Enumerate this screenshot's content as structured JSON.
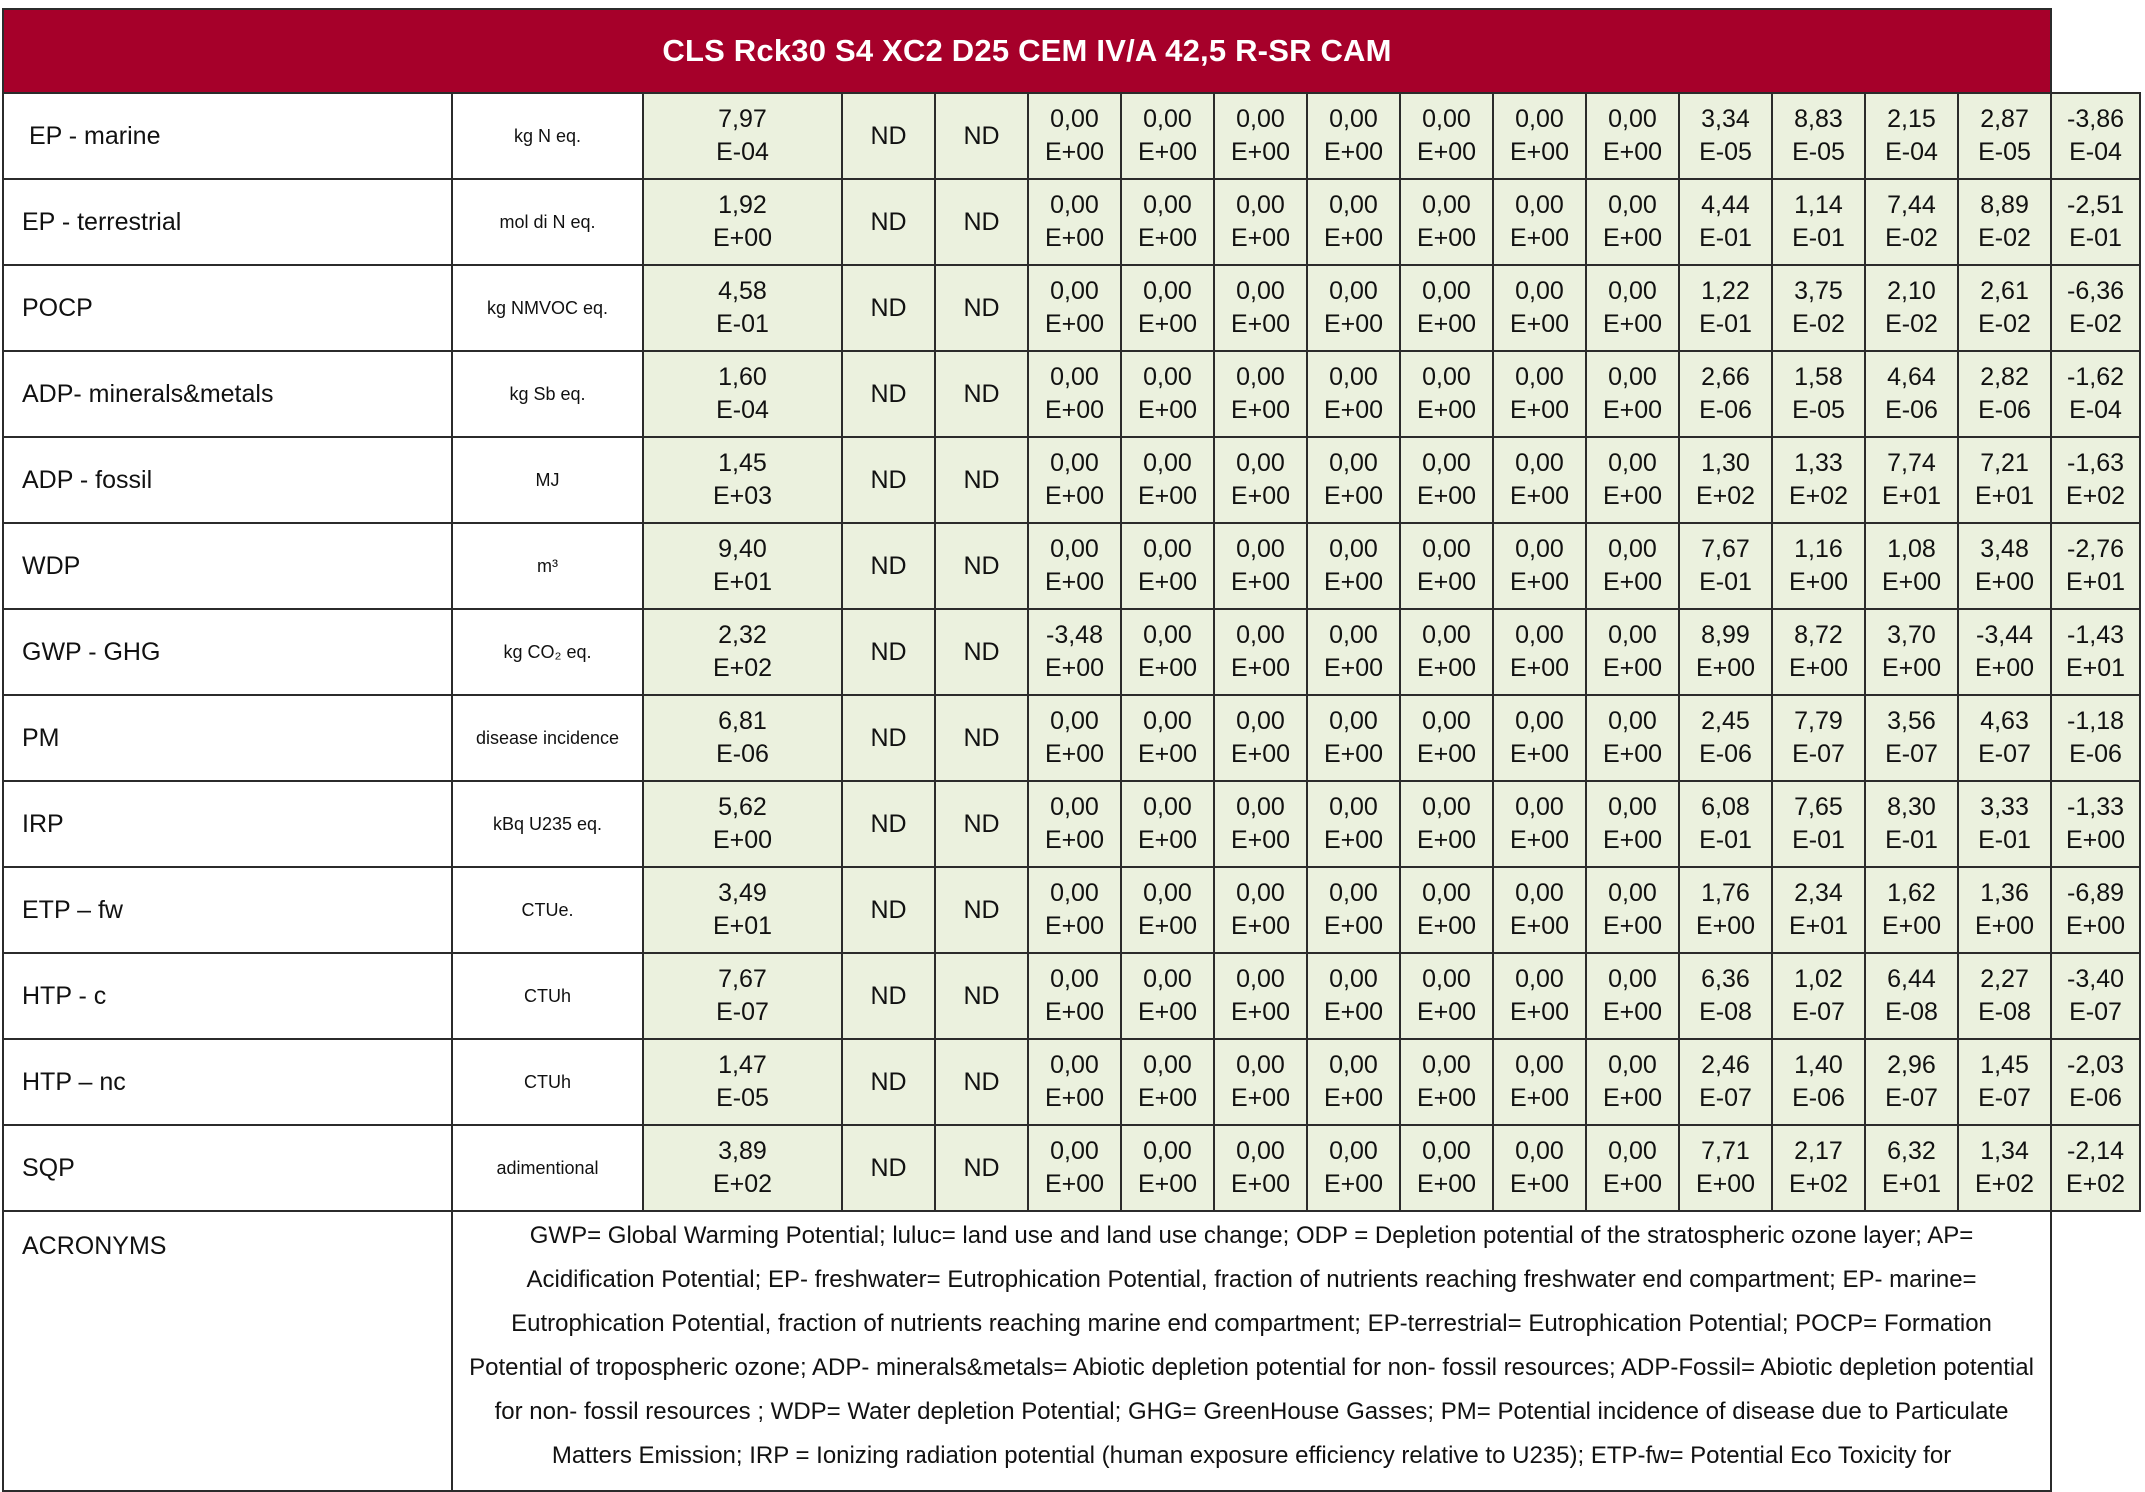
{
  "title": "CLS Rck30 S4 XC2 D25 CEM IV/A 42,5 R-SR CAM",
  "nd_label": "ND",
  "colors": {
    "header_bg": "#a6002a",
    "header_text": "#ffffff",
    "value_cell_bg": "#ebf1de",
    "border": "#2b2b2b"
  },
  "rows": [
    {
      "indicator": " EP - marine",
      "unit": "kg N eq.",
      "first": [
        "7,97",
        "E-04"
      ],
      "values": [
        [
          "0,00",
          "E+00"
        ],
        [
          "0,00",
          "E+00"
        ],
        [
          "0,00",
          "E+00"
        ],
        [
          "0,00",
          "E+00"
        ],
        [
          "0,00",
          "E+00"
        ],
        [
          "0,00",
          "E+00"
        ],
        [
          "0,00",
          "E+00"
        ],
        [
          "3,34",
          "E-05"
        ],
        [
          "8,83",
          "E-05"
        ],
        [
          "2,15",
          "E-04"
        ],
        [
          "2,87",
          "E-05"
        ],
        [
          "-3,86",
          "E-04"
        ]
      ]
    },
    {
      "indicator": "EP - terrestrial",
      "unit": "mol di N eq.",
      "first": [
        "1,92",
        "E+00"
      ],
      "values": [
        [
          "0,00",
          "E+00"
        ],
        [
          "0,00",
          "E+00"
        ],
        [
          "0,00",
          "E+00"
        ],
        [
          "0,00",
          "E+00"
        ],
        [
          "0,00",
          "E+00"
        ],
        [
          "0,00",
          "E+00"
        ],
        [
          "0,00",
          "E+00"
        ],
        [
          "4,44",
          "E-01"
        ],
        [
          "1,14",
          "E-01"
        ],
        [
          "7,44",
          "E-02"
        ],
        [
          "8,89",
          "E-02"
        ],
        [
          "-2,51",
          "E-01"
        ]
      ]
    },
    {
      "indicator": "POCP",
      "unit": "kg NMVOC eq.",
      "first": [
        "4,58",
        "E-01"
      ],
      "values": [
        [
          "0,00",
          "E+00"
        ],
        [
          "0,00",
          "E+00"
        ],
        [
          "0,00",
          "E+00"
        ],
        [
          "0,00",
          "E+00"
        ],
        [
          "0,00",
          "E+00"
        ],
        [
          "0,00",
          "E+00"
        ],
        [
          "0,00",
          "E+00"
        ],
        [
          "1,22",
          "E-01"
        ],
        [
          "3,75",
          "E-02"
        ],
        [
          "2,10",
          "E-02"
        ],
        [
          "2,61",
          "E-02"
        ],
        [
          "-6,36",
          "E-02"
        ]
      ]
    },
    {
      "indicator": "ADP- minerals&metals",
      "unit": "kg Sb eq.",
      "first": [
        "1,60",
        "E-04"
      ],
      "values": [
        [
          "0,00",
          "E+00"
        ],
        [
          "0,00",
          "E+00"
        ],
        [
          "0,00",
          "E+00"
        ],
        [
          "0,00",
          "E+00"
        ],
        [
          "0,00",
          "E+00"
        ],
        [
          "0,00",
          "E+00"
        ],
        [
          "0,00",
          "E+00"
        ],
        [
          "2,66",
          "E-06"
        ],
        [
          "1,58",
          "E-05"
        ],
        [
          "4,64",
          "E-06"
        ],
        [
          "2,82",
          "E-06"
        ],
        [
          "-1,62",
          "E-04"
        ]
      ]
    },
    {
      "indicator": "ADP - fossil",
      "unit": "MJ",
      "first": [
        "1,45",
        "E+03"
      ],
      "values": [
        [
          "0,00",
          "E+00"
        ],
        [
          "0,00",
          "E+00"
        ],
        [
          "0,00",
          "E+00"
        ],
        [
          "0,00",
          "E+00"
        ],
        [
          "0,00",
          "E+00"
        ],
        [
          "0,00",
          "E+00"
        ],
        [
          "0,00",
          "E+00"
        ],
        [
          "1,30",
          "E+02"
        ],
        [
          "1,33",
          "E+02"
        ],
        [
          "7,74",
          "E+01"
        ],
        [
          "7,21",
          "E+01"
        ],
        [
          "-1,63",
          "E+02"
        ]
      ]
    },
    {
      "indicator": "WDP",
      "unit": "m³",
      "first": [
        "9,40",
        "E+01"
      ],
      "values": [
        [
          "0,00",
          "E+00"
        ],
        [
          "0,00",
          "E+00"
        ],
        [
          "0,00",
          "E+00"
        ],
        [
          "0,00",
          "E+00"
        ],
        [
          "0,00",
          "E+00"
        ],
        [
          "0,00",
          "E+00"
        ],
        [
          "0,00",
          "E+00"
        ],
        [
          "7,67",
          "E-01"
        ],
        [
          "1,16",
          "E+00"
        ],
        [
          "1,08",
          "E+00"
        ],
        [
          "3,48",
          "E+00"
        ],
        [
          "-2,76",
          "E+01"
        ]
      ]
    },
    {
      "indicator": "GWP - GHG",
      "unit": "kg CO₂ eq.",
      "first": [
        "2,32",
        "E+02"
      ],
      "values": [
        [
          "-3,48",
          "E+00"
        ],
        [
          "0,00",
          "E+00"
        ],
        [
          "0,00",
          "E+00"
        ],
        [
          "0,00",
          "E+00"
        ],
        [
          "0,00",
          "E+00"
        ],
        [
          "0,00",
          "E+00"
        ],
        [
          "0,00",
          "E+00"
        ],
        [
          "8,99",
          "E+00"
        ],
        [
          "8,72",
          "E+00"
        ],
        [
          "3,70",
          "E+00"
        ],
        [
          "-3,44",
          "E+00"
        ],
        [
          "-1,43",
          "E+01"
        ]
      ]
    },
    {
      "indicator": "PM",
      "unit": "disease incidence",
      "first": [
        "6,81",
        "E-06"
      ],
      "values": [
        [
          "0,00",
          "E+00"
        ],
        [
          "0,00",
          "E+00"
        ],
        [
          "0,00",
          "E+00"
        ],
        [
          "0,00",
          "E+00"
        ],
        [
          "0,00",
          "E+00"
        ],
        [
          "0,00",
          "E+00"
        ],
        [
          "0,00",
          "E+00"
        ],
        [
          "2,45",
          "E-06"
        ],
        [
          "7,79",
          "E-07"
        ],
        [
          "3,56",
          "E-07"
        ],
        [
          "4,63",
          "E-07"
        ],
        [
          "-1,18",
          "E-06"
        ]
      ]
    },
    {
      "indicator": "IRP",
      "unit": "kBq U235 eq.",
      "first": [
        "5,62",
        "E+00"
      ],
      "values": [
        [
          "0,00",
          "E+00"
        ],
        [
          "0,00",
          "E+00"
        ],
        [
          "0,00",
          "E+00"
        ],
        [
          "0,00",
          "E+00"
        ],
        [
          "0,00",
          "E+00"
        ],
        [
          "0,00",
          "E+00"
        ],
        [
          "0,00",
          "E+00"
        ],
        [
          "6,08",
          "E-01"
        ],
        [
          "7,65",
          "E-01"
        ],
        [
          "8,30",
          "E-01"
        ],
        [
          "3,33",
          "E-01"
        ],
        [
          "-1,33",
          "E+00"
        ]
      ]
    },
    {
      "indicator": "ETP – fw",
      "unit": "CTUe.",
      "first": [
        "3,49",
        "E+01"
      ],
      "values": [
        [
          "0,00",
          "E+00"
        ],
        [
          "0,00",
          "E+00"
        ],
        [
          "0,00",
          "E+00"
        ],
        [
          "0,00",
          "E+00"
        ],
        [
          "0,00",
          "E+00"
        ],
        [
          "0,00",
          "E+00"
        ],
        [
          "0,00",
          "E+00"
        ],
        [
          "1,76",
          "E+00"
        ],
        [
          "2,34",
          "E+01"
        ],
        [
          "1,62",
          "E+00"
        ],
        [
          "1,36",
          "E+00"
        ],
        [
          "-6,89",
          "E+00"
        ]
      ]
    },
    {
      "indicator": "HTP - c",
      "unit": "CTUh",
      "first": [
        "7,67",
        "E-07"
      ],
      "values": [
        [
          "0,00",
          "E+00"
        ],
        [
          "0,00",
          "E+00"
        ],
        [
          "0,00",
          "E+00"
        ],
        [
          "0,00",
          "E+00"
        ],
        [
          "0,00",
          "E+00"
        ],
        [
          "0,00",
          "E+00"
        ],
        [
          "0,00",
          "E+00"
        ],
        [
          "6,36",
          "E-08"
        ],
        [
          "1,02",
          "E-07"
        ],
        [
          "6,44",
          "E-08"
        ],
        [
          "2,27",
          "E-08"
        ],
        [
          "-3,40",
          "E-07"
        ]
      ]
    },
    {
      "indicator": "HTP – nc",
      "unit": "CTUh",
      "first": [
        "1,47",
        "E-05"
      ],
      "values": [
        [
          "0,00",
          "E+00"
        ],
        [
          "0,00",
          "E+00"
        ],
        [
          "0,00",
          "E+00"
        ],
        [
          "0,00",
          "E+00"
        ],
        [
          "0,00",
          "E+00"
        ],
        [
          "0,00",
          "E+00"
        ],
        [
          "0,00",
          "E+00"
        ],
        [
          "2,46",
          "E-07"
        ],
        [
          "1,40",
          "E-06"
        ],
        [
          "2,96",
          "E-07"
        ],
        [
          "1,45",
          "E-07"
        ],
        [
          "-2,03",
          "E-06"
        ]
      ]
    },
    {
      "indicator": "SQP",
      "unit": "adimentional",
      "first": [
        "3,89",
        "E+02"
      ],
      "values": [
        [
          "0,00",
          "E+00"
        ],
        [
          "0,00",
          "E+00"
        ],
        [
          "0,00",
          "E+00"
        ],
        [
          "0,00",
          "E+00"
        ],
        [
          "0,00",
          "E+00"
        ],
        [
          "0,00",
          "E+00"
        ],
        [
          "0,00",
          "E+00"
        ],
        [
          "7,71",
          "E+00"
        ],
        [
          "2,17",
          "E+02"
        ],
        [
          "6,32",
          "E+01"
        ],
        [
          "1,34",
          "E+02"
        ],
        [
          "-2,14",
          "E+02"
        ]
      ]
    }
  ],
  "acronyms": {
    "label": "ACRONYMS",
    "text": "GWP= Global Warming Potential; luluc= land use and land use change; ODP = Depletion potential of the stratospheric ozone layer; AP= Acidification Potential; EP- freshwater= Eutrophication Potential, fraction of nutrients reaching freshwater end compartment; EP- marine= Eutrophication Potential, fraction of nutrients reaching marine end compartment; EP-terrestrial= Eutrophication Potential; POCP= Formation Potential of tropospheric ozone; ADP- minerals&metals= Abiotic depletion potential for non- fossil resources; ADP-Fossil= Abiotic depletion potential for non- fossil resources ; WDP=  Water depletion Potential; GHG= GreenHouse Gasses; PM= Potential incidence of disease due to Particulate Matters Emission; IRP = Ionizing radiation potential (human exposure efficiency relative to U235); ETP-fw= Potential Eco Toxicity for"
  }
}
